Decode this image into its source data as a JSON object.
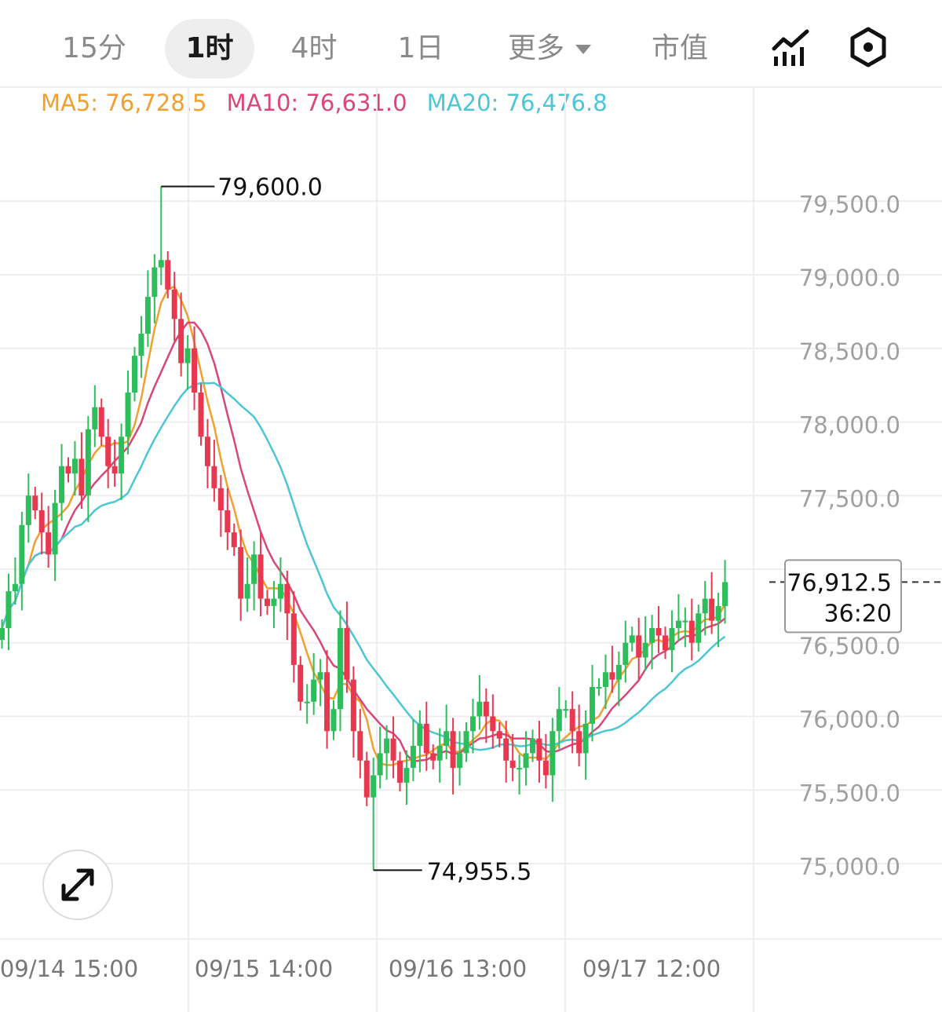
{
  "timeframe_tabs": [
    {
      "label": "15分",
      "active": false
    },
    {
      "label": "1时",
      "active": true
    },
    {
      "label": "4时",
      "active": false
    },
    {
      "label": "1日",
      "active": false
    },
    {
      "label": "更多",
      "active": false,
      "dropdown": true
    },
    {
      "label": "市值",
      "active": false
    }
  ],
  "toolbar_icons": [
    "indicator-chart-icon",
    "settings-hex-icon"
  ],
  "ma_legend": [
    {
      "label": "MA5: 76,728.5",
      "color": "#f0a030"
    },
    {
      "label": "MA10: 76,631.0",
      "color": "#d9467a"
    },
    {
      "label": "MA20: 76,476.8",
      "color": "#4cc6d6"
    }
  ],
  "colors": {
    "up": "#2dbd5a",
    "down": "#e8384f",
    "grid": "#eeeeee",
    "axis_text": "#a0a0a0",
    "ma5": "#f0a030",
    "ma10": "#d9467a",
    "ma20": "#4cc6d6"
  },
  "chart_data": {
    "type": "candlestick",
    "interval": "1时",
    "y_ticks": [
      79500,
      79000,
      78500,
      78000,
      77500,
      77000,
      76500,
      76000,
      75500,
      75000
    ],
    "y_tick_labels": [
      "79,500.0",
      "79,000.0",
      "78,500.0",
      "78,000.0",
      "77,500.0",
      "77,000.0",
      "76,500.0",
      "76,000.0",
      "75,500.0",
      "75,000.0"
    ],
    "x_labels": [
      "09/14 15:00",
      "09/15 14:00",
      "09/16 13:00",
      "09/17 12:00"
    ],
    "high_marker": {
      "value": 79600.0,
      "label": "79,600.0"
    },
    "low_marker": {
      "value": 74955.5,
      "label": 74955.5,
      "label_text": "74,955.5"
    },
    "last_price": {
      "label": "76,912.5",
      "countdown": "36:20"
    },
    "closes": [
      76600,
      76850,
      76900,
      77300,
      77500,
      77400,
      77250,
      77100,
      77450,
      77700,
      77650,
      77750,
      77500,
      77950,
      78100,
      77900,
      77700,
      77650,
      77900,
      78200,
      78450,
      78600,
      78850,
      79050,
      79100,
      78900,
      78700,
      78400,
      78500,
      78200,
      77900,
      77700,
      77550,
      77400,
      77250,
      77150,
      76800,
      76900,
      77100,
      76800,
      76750,
      76800,
      76900,
      76700,
      76350,
      76100,
      76100,
      76250,
      76300,
      75900,
      76050,
      76600,
      76250,
      75900,
      75700,
      75450,
      75600,
      75750,
      75850,
      75700,
      75550,
      75650,
      75800,
      75950,
      75750,
      75700,
      75800,
      75900,
      75650,
      75750,
      75900,
      76000,
      76100,
      76000,
      75900,
      75850,
      75700,
      75650,
      75650,
      75750,
      75850,
      75700,
      75600,
      75900,
      76050,
      76050,
      75900,
      75750,
      75950,
      76200,
      76200,
      76300,
      76250,
      76350,
      76500,
      76550,
      76400,
      76500,
      76600,
      76550,
      76450,
      76600,
      76650,
      76650,
      76500,
      76700,
      76800,
      76650,
      76750,
      76912.5
    ],
    "ma5_last": 76728.5,
    "ma10_last": 76631.0,
    "ma20_last": 76476.8
  }
}
